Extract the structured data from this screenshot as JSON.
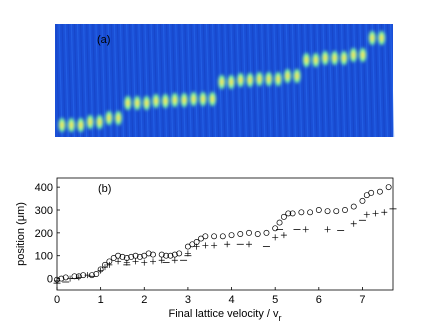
{
  "panel_a": {
    "label": "(a)"
  },
  "chart_data": {
    "type": "scatter",
    "label": "(b)",
    "xlabel": {
      "text": "Final lattice velocity / v",
      "subscript": "r"
    },
    "ylabel": "position (μm)",
    "xlim": [
      0,
      7.7
    ],
    "ylim": [
      -50,
      440
    ],
    "xticks": [
      0,
      1,
      2,
      3,
      4,
      5,
      6,
      7
    ],
    "yticks": [
      0,
      100,
      200,
      300,
      400
    ],
    "series": [
      {
        "marker": "circle",
        "color": "#000000",
        "x": [
          0,
          0.1,
          0.2,
          0.4,
          0.5,
          0.6,
          0.8,
          0.9,
          1.0,
          1.1,
          1.2,
          1.3,
          1.4,
          1.5,
          1.6,
          1.7,
          1.8,
          1.9,
          2.0,
          2.1,
          2.2,
          2.4,
          2.5,
          2.6,
          2.7,
          2.8,
          3.0,
          3.1,
          3.2,
          3.3,
          3.4,
          3.6,
          3.8,
          4.0,
          4.2,
          4.4,
          4.6,
          4.8,
          5.0,
          5.1,
          5.2,
          5.3,
          5.4,
          5.6,
          5.8,
          6.0,
          6.2,
          6.4,
          6.6,
          6.8,
          7.0,
          7.1,
          7.2,
          7.4,
          7.6
        ],
        "values": [
          -5,
          0,
          5,
          10,
          10,
          15,
          15,
          20,
          40,
          60,
          75,
          90,
          100,
          95,
          90,
          95,
          100,
          95,
          100,
          110,
          105,
          105,
          100,
          100,
          105,
          110,
          140,
          150,
          160,
          175,
          185,
          185,
          185,
          190,
          195,
          200,
          195,
          200,
          220,
          245,
          270,
          285,
          285,
          290,
          290,
          300,
          295,
          295,
          300,
          315,
          340,
          365,
          375,
          380,
          400
        ]
      },
      {
        "marker": "plus",
        "color": "#000000",
        "x": [
          0,
          0.3,
          0.5,
          0.7,
          1.0,
          1.1,
          1.2,
          1.4,
          1.6,
          1.8,
          2.0,
          2.2,
          2.4,
          2.7,
          3.0,
          3.2,
          3.4,
          3.6,
          3.9,
          4.4,
          5.0,
          5.2,
          5.7,
          6.2,
          6.8,
          7.1,
          7.3,
          7.5
        ],
        "values": [
          -10,
          0,
          5,
          15,
          35,
          50,
          60,
          75,
          70,
          75,
          70,
          75,
          80,
          80,
          110,
          140,
          145,
          145,
          150,
          150,
          180,
          190,
          215,
          215,
          240,
          280,
          285,
          290
        ]
      },
      {
        "marker": "dash",
        "color": "#000000",
        "x": [
          0,
          0.2,
          0.4,
          0.8,
          1.6,
          2.5,
          2.9,
          3.0,
          4.2,
          4.8,
          5.1,
          5.5,
          6.5,
          7.0,
          7.7
        ],
        "values": [
          -20,
          -15,
          0,
          10,
          60,
          70,
          80,
          100,
          150,
          140,
          215,
          215,
          210,
          255,
          305
        ]
      }
    ]
  }
}
